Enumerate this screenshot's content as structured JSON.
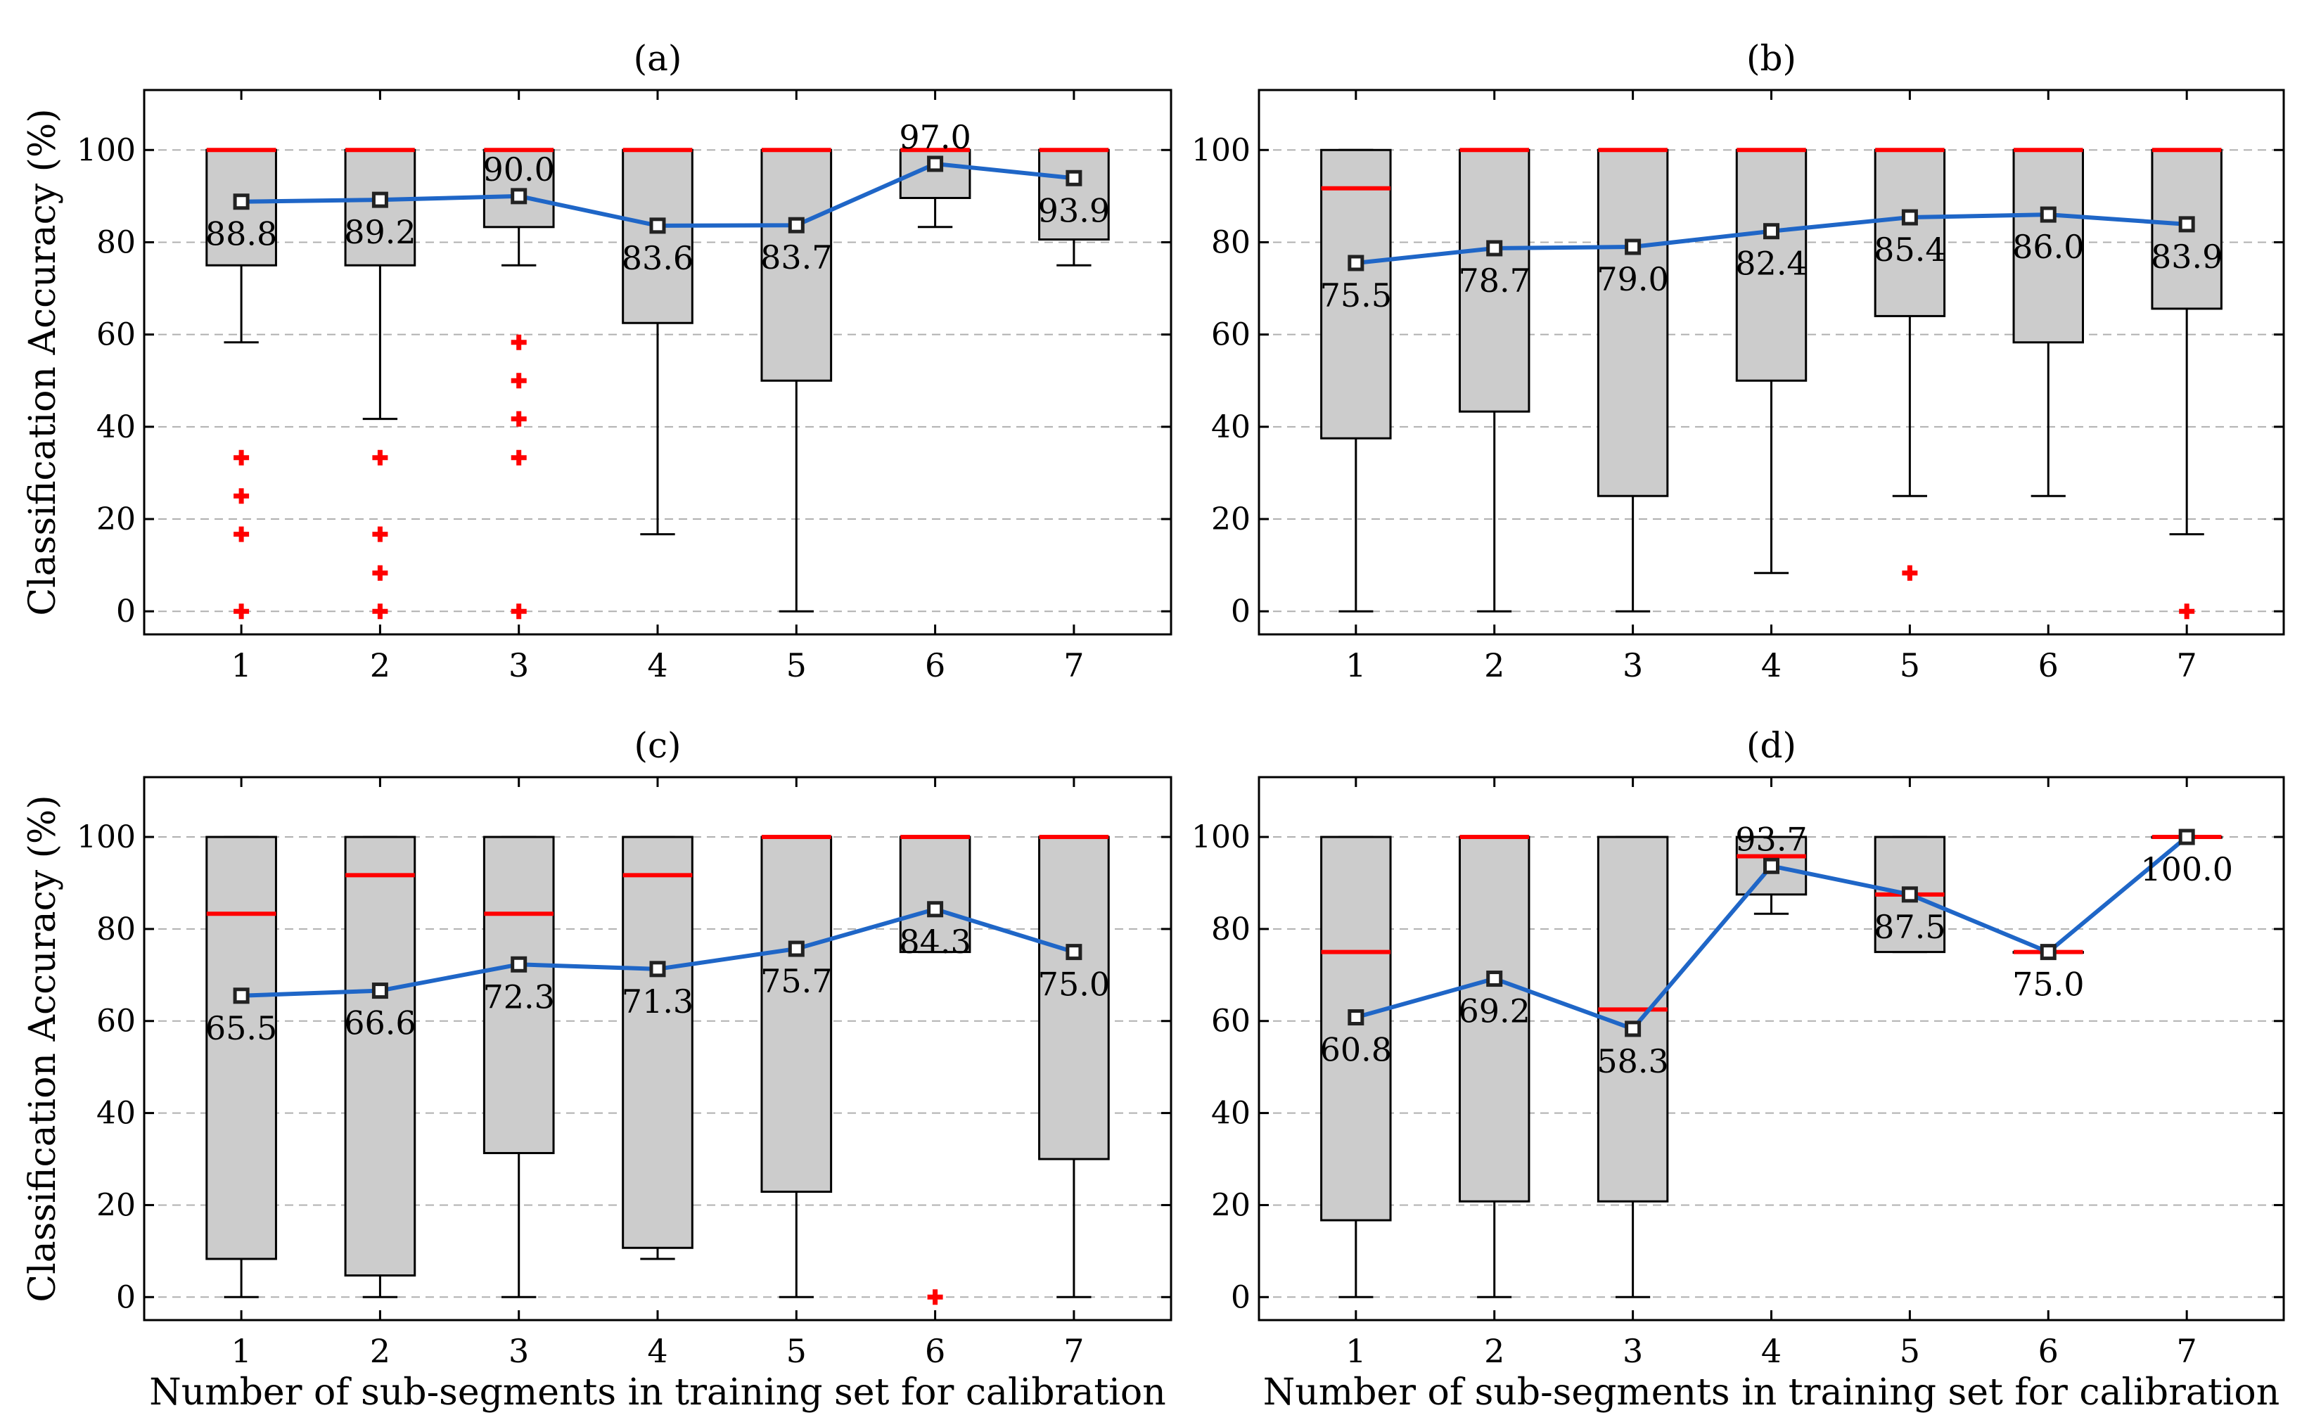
{
  "colors": {
    "box_fill": "#cccccc",
    "median": "#ff0000",
    "mean_line": "#1f66c7",
    "outlier": "#ff0000",
    "grid": "#b0b0b0",
    "axis": "#000000"
  },
  "chart_data": [
    {
      "type": "box",
      "panel": "(a)",
      "title": "(a)",
      "ylabel": "Classification Accuracy (%)",
      "xlabel": "",
      "ylim": [
        -5,
        113
      ],
      "yticks": [
        0,
        20,
        40,
        60,
        80,
        100
      ],
      "categories": [
        "1",
        "2",
        "3",
        "4",
        "5",
        "6",
        "7"
      ],
      "grid": true,
      "boxes": [
        {
          "min": 58.3,
          "q1": 75.0,
          "median": 100,
          "q3": 100,
          "max": 100,
          "outliers": [
            33.3,
            25.0,
            16.7,
            0
          ]
        },
        {
          "min": 41.7,
          "q1": 75.0,
          "median": 100,
          "q3": 100,
          "max": 100,
          "outliers": [
            33.3,
            16.7,
            8.3,
            0
          ]
        },
        {
          "min": 75.0,
          "q1": 83.3,
          "median": 100,
          "q3": 100,
          "max": 100,
          "outliers": [
            58.3,
            50.0,
            41.7,
            33.3,
            0
          ]
        },
        {
          "min": 16.7,
          "q1": 62.5,
          "median": 100,
          "q3": 100,
          "max": 100,
          "outliers": []
        },
        {
          "min": 0,
          "q1": 50.0,
          "median": 100,
          "q3": 100,
          "max": 100,
          "outliers": []
        },
        {
          "min": 83.3,
          "q1": 89.6,
          "median": 100,
          "q3": 100,
          "max": 100,
          "outliers": []
        },
        {
          "min": 75.0,
          "q1": 80.6,
          "median": 100,
          "q3": 100,
          "max": 100,
          "outliers": []
        }
      ],
      "means": [
        88.8,
        89.2,
        90.0,
        83.6,
        83.7,
        97.0,
        93.9
      ],
      "mean_labels": [
        "88.8",
        "89.2",
        "90.0",
        "83.6",
        "83.7",
        "97.0",
        "93.9"
      ],
      "label_pos": [
        "below",
        "below",
        "above",
        "below",
        "below",
        "above",
        "below"
      ]
    },
    {
      "type": "box",
      "panel": "(b)",
      "title": "(b)",
      "ylabel": "",
      "xlabel": "",
      "ylim": [
        -5,
        113
      ],
      "yticks": [
        0,
        20,
        40,
        60,
        80,
        100
      ],
      "categories": [
        "1",
        "2",
        "3",
        "4",
        "5",
        "6",
        "7"
      ],
      "grid": true,
      "boxes": [
        {
          "min": 0,
          "q1": 37.5,
          "median": 91.7,
          "q3": 100,
          "max": 100,
          "outliers": []
        },
        {
          "min": 0,
          "q1": 43.3,
          "median": 100,
          "q3": 100,
          "max": 100,
          "outliers": []
        },
        {
          "min": 0,
          "q1": 25.0,
          "median": 100,
          "q3": 100,
          "max": 100,
          "outliers": []
        },
        {
          "min": 8.3,
          "q1": 50.0,
          "median": 100,
          "q3": 100,
          "max": 100,
          "outliers": []
        },
        {
          "min": 25.0,
          "q1": 64.0,
          "median": 100,
          "q3": 100,
          "max": 100,
          "outliers": [
            8.3
          ]
        },
        {
          "min": 25.0,
          "q1": 58.3,
          "median": 100,
          "q3": 100,
          "max": 100,
          "outliers": []
        },
        {
          "min": 16.7,
          "q1": 65.6,
          "median": 100,
          "q3": 100,
          "max": 100,
          "outliers": [
            0
          ]
        }
      ],
      "means": [
        75.5,
        78.7,
        79.0,
        82.4,
        85.4,
        86.0,
        83.9
      ],
      "mean_labels": [
        "75.5",
        "78.7",
        "79.0",
        "82.4",
        "85.4",
        "86.0",
        "83.9"
      ],
      "label_pos": [
        "below",
        "below",
        "below",
        "below",
        "below",
        "below",
        "below"
      ]
    },
    {
      "type": "box",
      "panel": "(c)",
      "title": "(c)",
      "ylabel": "Classification Accuracy (%)",
      "xlabel": "Number of sub-segments in training set for calibration",
      "ylim": [
        -5,
        113
      ],
      "yticks": [
        0,
        20,
        40,
        60,
        80,
        100
      ],
      "categories": [
        "1",
        "2",
        "3",
        "4",
        "5",
        "6",
        "7"
      ],
      "grid": true,
      "boxes": [
        {
          "min": 0,
          "q1": 8.3,
          "median": 83.3,
          "q3": 100,
          "max": 100,
          "outliers": []
        },
        {
          "min": 0,
          "q1": 4.7,
          "median": 91.7,
          "q3": 100,
          "max": 100,
          "outliers": []
        },
        {
          "min": 0,
          "q1": 31.3,
          "median": 83.3,
          "q3": 100,
          "max": 100,
          "outliers": []
        },
        {
          "min": 8.3,
          "q1": 10.7,
          "median": 91.7,
          "q3": 100,
          "max": 100,
          "outliers": []
        },
        {
          "min": 0,
          "q1": 22.9,
          "median": 100,
          "q3": 100,
          "max": 100,
          "outliers": []
        },
        {
          "min": 75.0,
          "q1": 75.0,
          "median": 100,
          "q3": 100,
          "max": 100,
          "outliers": [
            0
          ]
        },
        {
          "min": 0,
          "q1": 30.0,
          "median": 100,
          "q3": 100,
          "max": 100,
          "outliers": []
        }
      ],
      "means": [
        65.5,
        66.6,
        72.3,
        71.3,
        75.7,
        84.3,
        75.0
      ],
      "mean_labels": [
        "65.5",
        "66.6",
        "72.3",
        "71.3",
        "75.7",
        "84.3",
        "75.0"
      ],
      "label_pos": [
        "below",
        "below",
        "below",
        "below",
        "below",
        "below",
        "below"
      ]
    },
    {
      "type": "box",
      "panel": "(d)",
      "title": "(d)",
      "ylabel": "",
      "xlabel": "Number of sub-segments in training set for calibration",
      "ylim": [
        -5,
        113
      ],
      "yticks": [
        0,
        20,
        40,
        60,
        80,
        100
      ],
      "categories": [
        "1",
        "2",
        "3",
        "4",
        "5",
        "6",
        "7"
      ],
      "grid": true,
      "boxes": [
        {
          "min": 0,
          "q1": 16.7,
          "median": 75.0,
          "q3": 100,
          "max": 100,
          "outliers": []
        },
        {
          "min": 0,
          "q1": 20.8,
          "median": 100,
          "q3": 100,
          "max": 100,
          "outliers": []
        },
        {
          "min": 0,
          "q1": 20.8,
          "median": 62.5,
          "q3": 100,
          "max": 100,
          "outliers": []
        },
        {
          "min": 83.3,
          "q1": 87.5,
          "median": 95.8,
          "q3": 100,
          "max": 100,
          "outliers": []
        },
        {
          "min": 75.0,
          "q1": 75.0,
          "median": 87.5,
          "q3": 100,
          "max": 100,
          "outliers": []
        },
        {
          "min": 75.0,
          "q1": 75.0,
          "median": 75.0,
          "q3": 75.0,
          "max": 75.0,
          "outliers": []
        },
        {
          "min": 100,
          "q1": 100,
          "median": 100,
          "q3": 100,
          "max": 100,
          "outliers": []
        }
      ],
      "means": [
        60.8,
        69.2,
        58.3,
        93.7,
        87.5,
        75.0,
        100.0
      ],
      "mean_labels": [
        "60.8",
        "69.2",
        "58.3",
        "93.7",
        "87.5",
        "75.0",
        "100.0"
      ],
      "label_pos": [
        "below",
        "below",
        "below",
        "above",
        "below",
        "below",
        "below"
      ]
    }
  ]
}
